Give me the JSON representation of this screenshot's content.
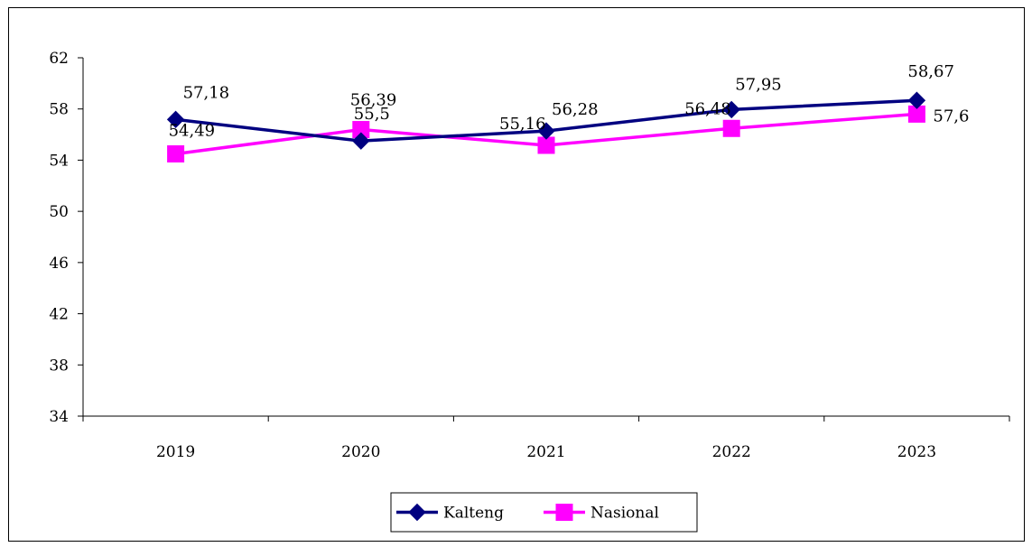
{
  "chart_data": {
    "type": "line",
    "categories": [
      "2019",
      "2020",
      "2021",
      "2022",
      "2023"
    ],
    "ylim": [
      34,
      62
    ],
    "yticks": [
      34,
      38,
      42,
      46,
      50,
      54,
      58,
      62
    ],
    "grid": false,
    "legend_position": "bottom-center",
    "series": [
      {
        "name": "Kalteng",
        "values": [
          57.18,
          55.5,
          56.28,
          57.95,
          58.67
        ],
        "labels": [
          "57,18",
          "55,5",
          "56,28",
          "57,95",
          "58,67"
        ],
        "color": "#000080",
        "marker": "diamond"
      },
      {
        "name": "Nasional",
        "values": [
          54.49,
          56.39,
          55.16,
          56.48,
          57.6
        ],
        "labels": [
          "54,49",
          "56,39",
          "55,16",
          "56,48",
          "57,6"
        ],
        "color": "#ff00ff",
        "marker": "square"
      }
    ]
  }
}
